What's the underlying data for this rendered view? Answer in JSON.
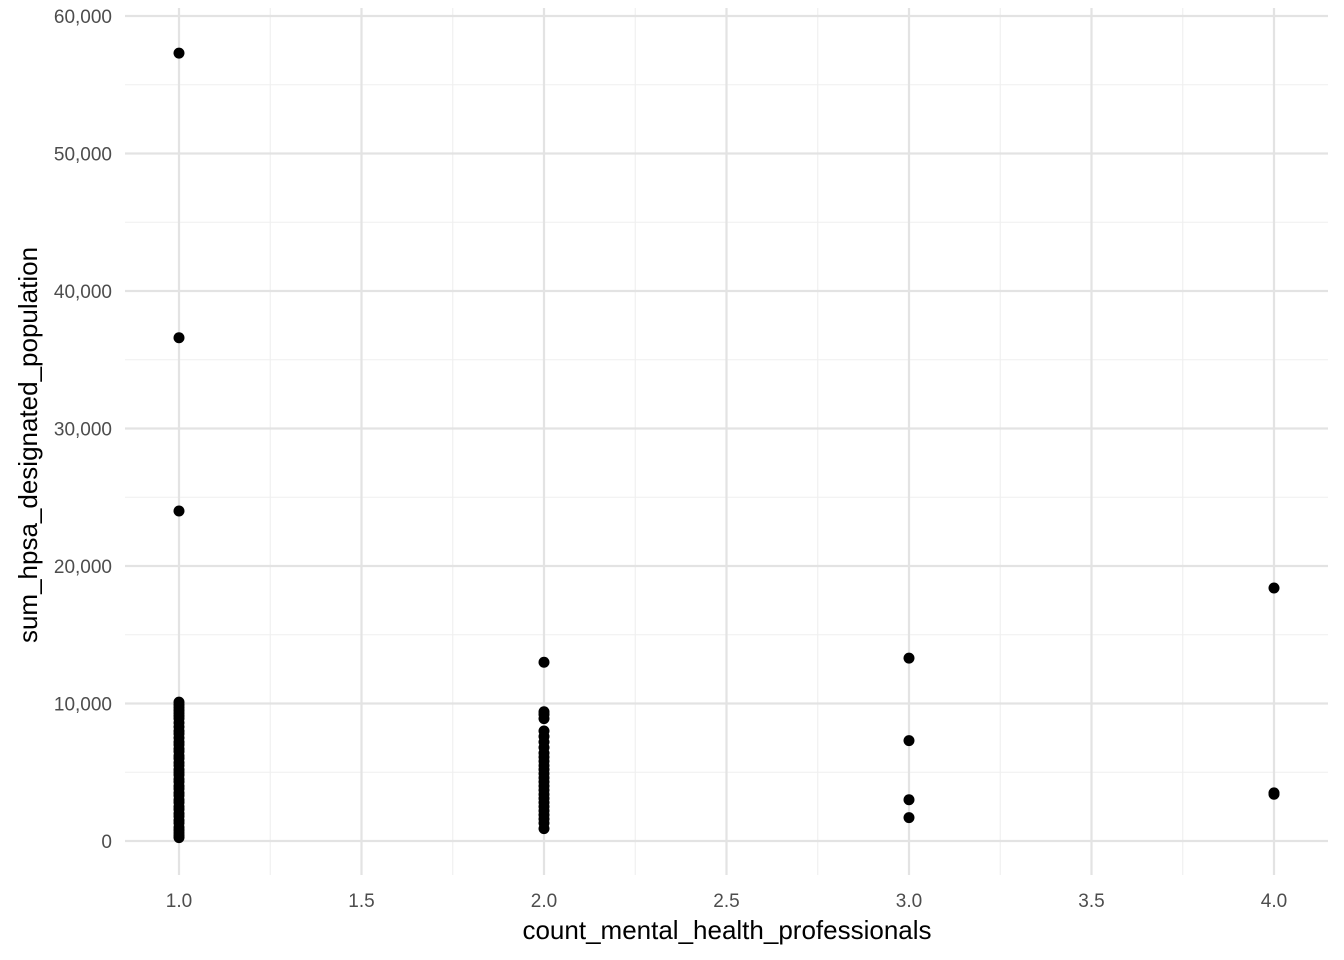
{
  "chart_data": {
    "type": "scatter",
    "xlabel": "count_mental_health_professionals",
    "ylabel": "sum_hpsa_designated_population",
    "xlim": [
      0.85,
      4.15
    ],
    "ylim": [
      -2500,
      60000
    ],
    "x_ticks": [
      1.0,
      1.5,
      2.0,
      2.5,
      3.0,
      3.5,
      4.0
    ],
    "x_tick_labels": [
      "1.0",
      "1.5",
      "2.0",
      "2.5",
      "3.0",
      "3.5",
      "4.0"
    ],
    "y_ticks": [
      0,
      10000,
      20000,
      30000,
      40000,
      50000,
      60000
    ],
    "y_tick_labels": [
      "0",
      "10,000",
      "20,000",
      "30,000",
      "40,000",
      "50,000",
      "60,000"
    ],
    "grid": true,
    "point_color": "#000000",
    "points": [
      {
        "x": 1,
        "y": 57300
      },
      {
        "x": 1,
        "y": 36600
      },
      {
        "x": 1,
        "y": 24000
      },
      {
        "x": 1,
        "y": 10100
      },
      {
        "x": 1,
        "y": 9900
      },
      {
        "x": 1,
        "y": 9700
      },
      {
        "x": 1,
        "y": 9500
      },
      {
        "x": 1,
        "y": 9300
      },
      {
        "x": 1,
        "y": 9100
      },
      {
        "x": 1,
        "y": 8900
      },
      {
        "x": 1,
        "y": 8600
      },
      {
        "x": 1,
        "y": 8300
      },
      {
        "x": 1,
        "y": 8000
      },
      {
        "x": 1,
        "y": 7800
      },
      {
        "x": 1,
        "y": 7500
      },
      {
        "x": 1,
        "y": 7200
      },
      {
        "x": 1,
        "y": 7000
      },
      {
        "x": 1,
        "y": 6700
      },
      {
        "x": 1,
        "y": 6500
      },
      {
        "x": 1,
        "y": 6200
      },
      {
        "x": 1,
        "y": 6000
      },
      {
        "x": 1,
        "y": 5700
      },
      {
        "x": 1,
        "y": 5500
      },
      {
        "x": 1,
        "y": 5200
      },
      {
        "x": 1,
        "y": 5000
      },
      {
        "x": 1,
        "y": 4800
      },
      {
        "x": 1,
        "y": 4500
      },
      {
        "x": 1,
        "y": 4300
      },
      {
        "x": 1,
        "y": 4000
      },
      {
        "x": 1,
        "y": 3800
      },
      {
        "x": 1,
        "y": 3500
      },
      {
        "x": 1,
        "y": 3300
      },
      {
        "x": 1,
        "y": 3000
      },
      {
        "x": 1,
        "y": 2800
      },
      {
        "x": 1,
        "y": 2500
      },
      {
        "x": 1,
        "y": 2300
      },
      {
        "x": 1,
        "y": 2000
      },
      {
        "x": 1,
        "y": 1800
      },
      {
        "x": 1,
        "y": 1500
      },
      {
        "x": 1,
        "y": 1300
      },
      {
        "x": 1,
        "y": 1000
      },
      {
        "x": 1,
        "y": 800
      },
      {
        "x": 1,
        "y": 600
      },
      {
        "x": 1,
        "y": 400
      },
      {
        "x": 1,
        "y": 250
      },
      {
        "x": 2,
        "y": 13000
      },
      {
        "x": 2,
        "y": 9400
      },
      {
        "x": 2,
        "y": 9200
      },
      {
        "x": 2,
        "y": 8900
      },
      {
        "x": 2,
        "y": 8000
      },
      {
        "x": 2,
        "y": 7600
      },
      {
        "x": 2,
        "y": 7200
      },
      {
        "x": 2,
        "y": 6800
      },
      {
        "x": 2,
        "y": 6400
      },
      {
        "x": 2,
        "y": 6100
      },
      {
        "x": 2,
        "y": 5800
      },
      {
        "x": 2,
        "y": 5500
      },
      {
        "x": 2,
        "y": 5200
      },
      {
        "x": 2,
        "y": 4900
      },
      {
        "x": 2,
        "y": 4600
      },
      {
        "x": 2,
        "y": 4300
      },
      {
        "x": 2,
        "y": 4000
      },
      {
        "x": 2,
        "y": 3700
      },
      {
        "x": 2,
        "y": 3400
      },
      {
        "x": 2,
        "y": 3100
      },
      {
        "x": 2,
        "y": 2800
      },
      {
        "x": 2,
        "y": 2500
      },
      {
        "x": 2,
        "y": 2200
      },
      {
        "x": 2,
        "y": 1900
      },
      {
        "x": 2,
        "y": 1600
      },
      {
        "x": 2,
        "y": 1300
      },
      {
        "x": 2,
        "y": 900
      },
      {
        "x": 3,
        "y": 13300
      },
      {
        "x": 3,
        "y": 7300
      },
      {
        "x": 3,
        "y": 3000
      },
      {
        "x": 3,
        "y": 1700
      },
      {
        "x": 4,
        "y": 18400
      },
      {
        "x": 4,
        "y": 3500
      },
      {
        "x": 4,
        "y": 3400
      }
    ]
  }
}
